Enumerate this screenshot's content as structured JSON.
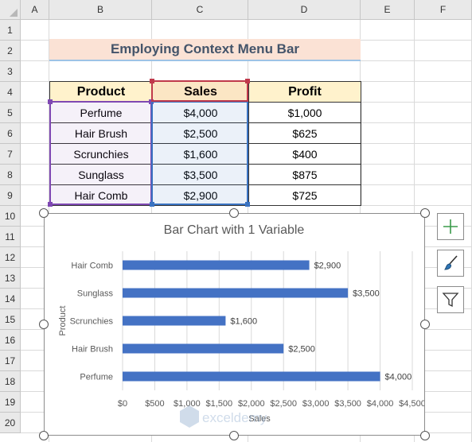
{
  "columns": [
    "A",
    "B",
    "C",
    "D",
    "E",
    "F"
  ],
  "rows": [
    "1",
    "2",
    "3",
    "4",
    "5",
    "6",
    "7",
    "8",
    "9",
    "10",
    "11",
    "12",
    "13",
    "14",
    "15",
    "16",
    "17",
    "18",
    "19",
    "20"
  ],
  "sheet_title": "Employing Context Menu Bar",
  "table": {
    "headers": [
      "Product",
      "Sales",
      "Profit"
    ],
    "rows": [
      [
        "Perfume",
        "$4,000",
        "$1,000"
      ],
      [
        "Hair Brush",
        "$2,500",
        "$625"
      ],
      [
        "Scrunchies",
        "$1,600",
        "$400"
      ],
      [
        "Sunglass",
        "$3,500",
        "$875"
      ],
      [
        "Hair Comb",
        "$2,900",
        "$725"
      ]
    ]
  },
  "colors": {
    "bar": "#4472c4",
    "title_fill": "#fbe2d5",
    "header_fill": "#fff2cc"
  },
  "side_buttons": [
    "plus-icon",
    "brush-icon",
    "filter-icon"
  ],
  "watermark": "exceldemy",
  "chart_data": {
    "type": "bar",
    "orientation": "horizontal",
    "title": "Bar Chart with 1 Variable",
    "xlabel": "Sales",
    "ylabel": "Product",
    "categories": [
      "Perfume",
      "Hair Brush",
      "Scrunchies",
      "Sunglass",
      "Hair Comb"
    ],
    "values": [
      4000,
      2500,
      1600,
      3500,
      2900
    ],
    "data_labels": [
      "$4,000",
      "$2,500",
      "$1,600",
      "$3,500",
      "$2,900"
    ],
    "xlim": [
      0,
      4500
    ],
    "xticks": [
      "$0",
      "$500",
      "$1,000",
      "$1,500",
      "$2,000",
      "$2,500",
      "$3,000",
      "$3,500",
      "$4,000",
      "$4,500"
    ],
    "grid": true,
    "legend": "none"
  }
}
